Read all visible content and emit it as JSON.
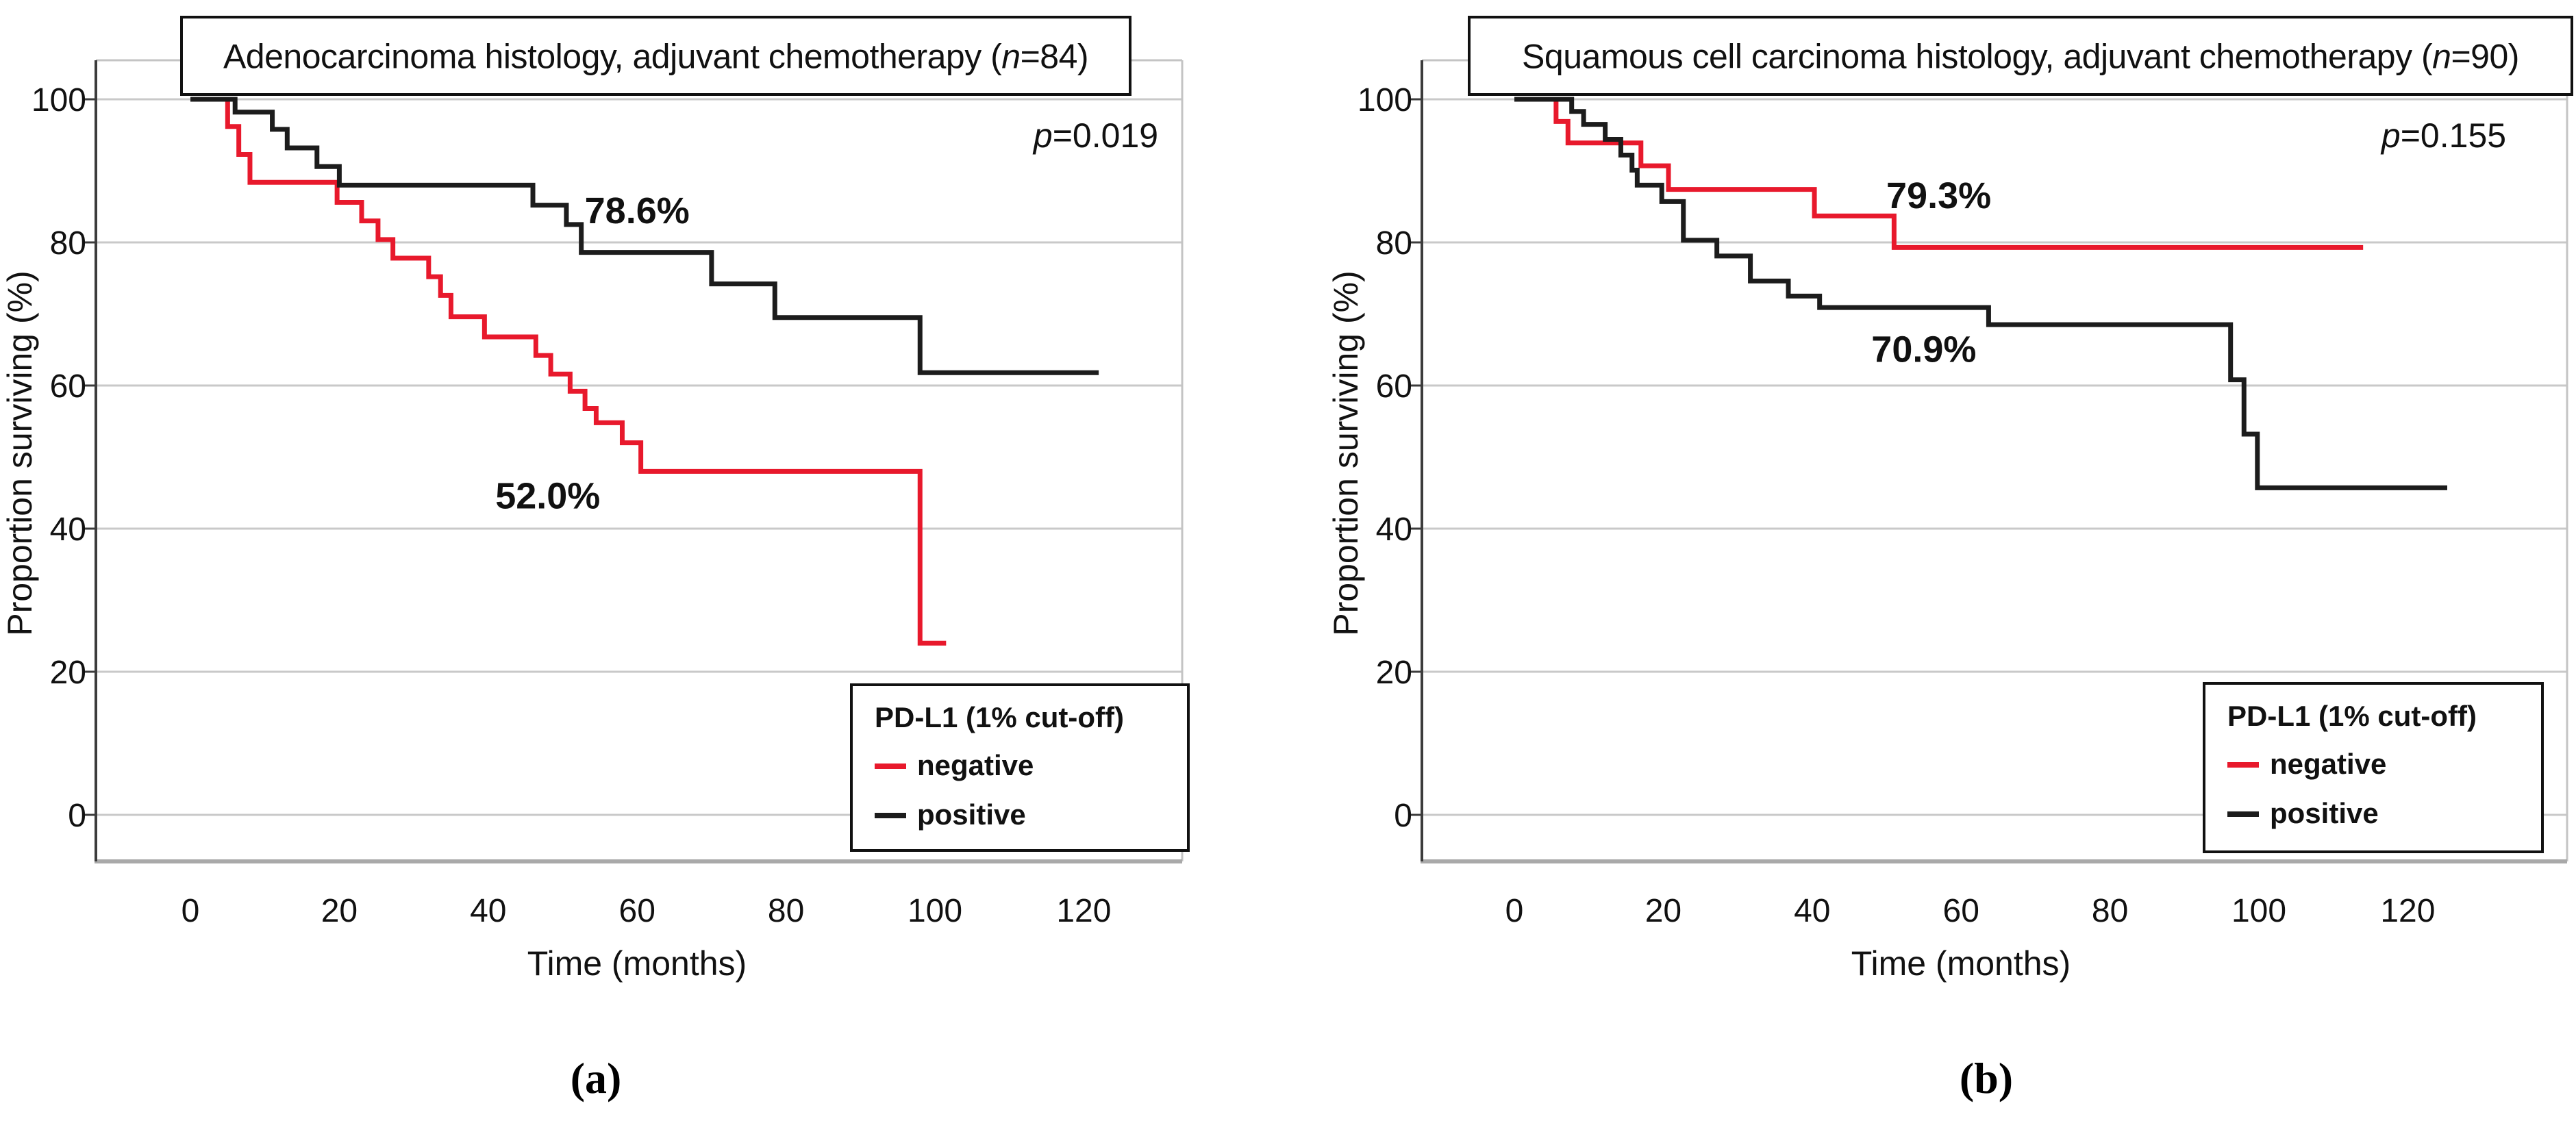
{
  "page": {
    "background": "#ffffff"
  },
  "figure": {
    "captions": [
      {
        "id": "a",
        "label": "(a)"
      },
      {
        "id": "b",
        "label": "(b)"
      }
    ]
  },
  "chart_data": [
    {
      "id": "a",
      "type": "line",
      "subtype": "kaplan-meier-step",
      "title": {
        "plain_before": "Adenocarcinoma histology, adjuvant chemotherapy (",
        "italic": "n",
        "plain_after": "=84)"
      },
      "p_value": {
        "italic": "p",
        "plain": "=0.019"
      },
      "xlabel": "Time (months)",
      "ylabel": "Proportion surviving (%)",
      "xticks": [
        0,
        20,
        40,
        60,
        80,
        100,
        120
      ],
      "yticks": [
        0,
        20,
        40,
        60,
        80,
        100
      ],
      "xlim": [
        0,
        133
      ],
      "ylim": [
        0,
        100
      ],
      "grid": true,
      "legend": {
        "position": "lower right",
        "title": "PD-L1 (1% cut-off)",
        "items": [
          {
            "label": "negative",
            "color": "#e8192c"
          },
          {
            "label": "positive",
            "color": "#1c1c1c"
          }
        ]
      },
      "annotations": [
        {
          "text": "78.6%",
          "t": 60,
          "pct": 82.7
        },
        {
          "text": "52.0%",
          "t": 48,
          "pct": 42.8
        }
      ],
      "series": [
        {
          "name": "negative",
          "color": "#e8192c",
          "steps": [
            [
              0,
              100
            ],
            [
              5,
              96.2
            ],
            [
              6.5,
              92.3
            ],
            [
              8,
              88.4
            ],
            [
              19.7,
              85.6
            ],
            [
              23,
              83
            ],
            [
              25.2,
              80.4
            ],
            [
              27.2,
              77.8
            ],
            [
              32,
              75.2
            ],
            [
              33.6,
              72.6
            ],
            [
              35,
              69.6
            ],
            [
              39.5,
              66.8
            ],
            [
              46.4,
              64.2
            ],
            [
              48.4,
              61.6
            ],
            [
              51,
              59.2
            ],
            [
              53,
              56.8
            ],
            [
              54.5,
              54.8
            ],
            [
              58,
              52
            ],
            [
              60.5,
              48
            ],
            [
              98,
              24
            ]
          ],
          "end_time": 101.5
        },
        {
          "name": "positive",
          "color": "#1c1c1c",
          "steps": [
            [
              0,
              100
            ],
            [
              6,
              98.2
            ],
            [
              11,
              95.8
            ],
            [
              13,
              93.2
            ],
            [
              17,
              90.6
            ],
            [
              20,
              88
            ],
            [
              46,
              85.2
            ],
            [
              50.5,
              82.5
            ],
            [
              52.5,
              78.6
            ],
            [
              70,
              74.2
            ],
            [
              78.5,
              69.5
            ],
            [
              98,
              61.8
            ]
          ],
          "end_time": 122
        }
      ]
    },
    {
      "id": "b",
      "type": "line",
      "subtype": "kaplan-meier-step",
      "title": {
        "plain_before": "Squamous cell carcinoma histology, adjuvant chemotherapy (",
        "italic": "n",
        "plain_after": "=90)"
      },
      "p_value": {
        "italic": "p",
        "plain": "=0.155"
      },
      "xlabel": "Time (months)",
      "ylabel": "Proportion surviving (%)",
      "xticks": [
        0,
        20,
        40,
        60,
        80,
        100,
        120
      ],
      "yticks": [
        0,
        20,
        40,
        60,
        80,
        100
      ],
      "xlim": [
        0,
        133
      ],
      "ylim": [
        0,
        100
      ],
      "grid": true,
      "legend": {
        "position": "lower right",
        "title": "PD-L1 (1% cut-off)",
        "items": [
          {
            "label": "negative",
            "color": "#e8192c"
          },
          {
            "label": "positive",
            "color": "#1c1c1c"
          }
        ]
      },
      "annotations": [
        {
          "text": "79.3%",
          "t": 57,
          "pct": 84.8
        },
        {
          "text": "70.9%",
          "t": 55,
          "pct": 63.3
        }
      ],
      "series": [
        {
          "name": "negative",
          "color": "#e8192c",
          "steps": [
            [
              0,
              100
            ],
            [
              5.6,
              96.9
            ],
            [
              7.2,
              93.9
            ],
            [
              17,
              90.7
            ],
            [
              20.7,
              87.4
            ],
            [
              40.3,
              83.7
            ],
            [
              51,
              79.3
            ]
          ],
          "end_time": 114
        },
        {
          "name": "positive",
          "color": "#1c1c1c",
          "steps": [
            [
              0,
              100
            ],
            [
              7.7,
              98.3
            ],
            [
              9.3,
              96.5
            ],
            [
              12.2,
              94.4
            ],
            [
              14.3,
              92.2
            ],
            [
              15.8,
              90.1
            ],
            [
              16.5,
              88
            ],
            [
              19.8,
              85.7
            ],
            [
              22.7,
              80.3
            ],
            [
              27.2,
              78.1
            ],
            [
              31.7,
              74.6
            ],
            [
              36.8,
              72.5
            ],
            [
              41,
              70.9
            ],
            [
              63.7,
              68.5
            ],
            [
              96.2,
              60.8
            ],
            [
              98,
              53.2
            ],
            [
              99.8,
              45.7
            ]
          ],
          "end_time": 125.3
        }
      ]
    }
  ]
}
